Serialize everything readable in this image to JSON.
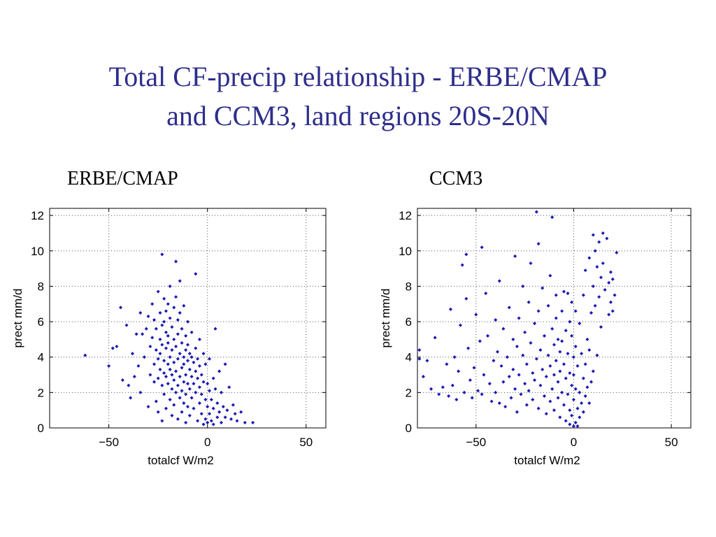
{
  "slide": {
    "title_line1": "Total CF-precip relationship - ERBE/CMAP",
    "title_line2": "and CCM3, land regions 20S-20N"
  },
  "colors": {
    "title": "#2e2e8c",
    "points": "#1a1ab4",
    "grid": "#555555"
  },
  "chart_data": [
    {
      "type": "scatter",
      "title": "ERBE/CMAP",
      "xlabel": "totalcf W/m2",
      "ylabel": "prect mm/d",
      "xlim": [
        -80,
        60
      ],
      "ylim": [
        0,
        12.4
      ],
      "xticks": [
        -50,
        0,
        50
      ],
      "xtick_labels": [
        "−50",
        "0",
        "50"
      ],
      "yticks": [
        0,
        2,
        4,
        6,
        8,
        10,
        12
      ],
      "ytick_labels": [
        "0",
        "2",
        "4",
        "6",
        "8",
        "10",
        "12"
      ],
      "grid": true,
      "legend": "none",
      "points": [
        [
          -62,
          4.1
        ],
        [
          -50,
          3.5
        ],
        [
          -48,
          4.5
        ],
        [
          -46,
          4.6
        ],
        [
          -44,
          6.8
        ],
        [
          -43,
          2.7
        ],
        [
          -41,
          5.8
        ],
        [
          -40,
          2.4
        ],
        [
          -39,
          1.7
        ],
        [
          -38,
          4.2
        ],
        [
          -37,
          2.9
        ],
        [
          -36,
          5.3
        ],
        [
          -35,
          3.5
        ],
        [
          -34,
          6.5
        ],
        [
          -34,
          2.0
        ],
        [
          -33,
          5.3
        ],
        [
          -32,
          4.0
        ],
        [
          -31,
          5.6
        ],
        [
          -30,
          6.3
        ],
        [
          -30,
          1.2
        ],
        [
          -29,
          3.0
        ],
        [
          -29,
          4.6
        ],
        [
          -28,
          7.0
        ],
        [
          -28,
          5.1
        ],
        [
          -27,
          3.6
        ],
        [
          -27,
          2.6
        ],
        [
          -27,
          6.1
        ],
        [
          -26,
          4.4
        ],
        [
          -26,
          5.6
        ],
        [
          -26,
          1.5
        ],
        [
          -25,
          7.7
        ],
        [
          -25,
          3.9
        ],
        [
          -25,
          2.8
        ],
        [
          -25,
          0.9
        ],
        [
          -24,
          6.5
        ],
        [
          -24,
          5.0
        ],
        [
          -24,
          3.3
        ],
        [
          -24,
          4.2
        ],
        [
          -23,
          9.8
        ],
        [
          -23,
          5.8
        ],
        [
          -23,
          4.7
        ],
        [
          -23,
          2.4
        ],
        [
          -23,
          0.4
        ],
        [
          -22,
          7.3
        ],
        [
          -22,
          6.0
        ],
        [
          -22,
          3.8
        ],
        [
          -22,
          3.1
        ],
        [
          -22,
          1.9
        ],
        [
          -21,
          5.4
        ],
        [
          -21,
          4.5
        ],
        [
          -21,
          2.9
        ],
        [
          -21,
          6.6
        ],
        [
          -21,
          1.1
        ],
        [
          -20,
          7.0
        ],
        [
          -20,
          5.2
        ],
        [
          -20,
          3.6
        ],
        [
          -20,
          2.5
        ],
        [
          -20,
          4.8
        ],
        [
          -19,
          8.0
        ],
        [
          -19,
          6.2
        ],
        [
          -19,
          3.3
        ],
        [
          -19,
          4.0
        ],
        [
          -19,
          1.6
        ],
        [
          -18,
          5.7
        ],
        [
          -18,
          4.4
        ],
        [
          -18,
          2.2
        ],
        [
          -18,
          3.0
        ],
        [
          -18,
          0.7
        ],
        [
          -17,
          6.8
        ],
        [
          -17,
          5.0
        ],
        [
          -17,
          3.7
        ],
        [
          -17,
          2.7
        ],
        [
          -17,
          1.3
        ],
        [
          -16,
          9.4
        ],
        [
          -16,
          7.4
        ],
        [
          -16,
          4.6
        ],
        [
          -16,
          3.2
        ],
        [
          -16,
          2.0
        ],
        [
          -15,
          6.1
        ],
        [
          -15,
          5.3
        ],
        [
          -15,
          3.9
        ],
        [
          -15,
          2.4
        ],
        [
          -15,
          0.5
        ],
        [
          -14,
          8.3
        ],
        [
          -14,
          6.5
        ],
        [
          -14,
          4.2
        ],
        [
          -14,
          2.9
        ],
        [
          -14,
          1.7
        ],
        [
          -13,
          5.6
        ],
        [
          -13,
          4.8
        ],
        [
          -13,
          3.4
        ],
        [
          -13,
          2.1
        ],
        [
          -13,
          0.9
        ],
        [
          -12,
          6.9
        ],
        [
          -12,
          4.0
        ],
        [
          -12,
          2.6
        ],
        [
          -12,
          1.4
        ],
        [
          -12,
          3.6
        ],
        [
          -11,
          5.2
        ],
        [
          -11,
          4.4
        ],
        [
          -11,
          3.0
        ],
        [
          -11,
          1.9
        ],
        [
          -11,
          0.3
        ],
        [
          -10,
          6.0
        ],
        [
          -10,
          4.7
        ],
        [
          -10,
          2.5
        ],
        [
          -10,
          3.8
        ],
        [
          -10,
          1.2
        ],
        [
          -9,
          4.2
        ],
        [
          -9,
          3.3
        ],
        [
          -9,
          2.2
        ],
        [
          -9,
          0.7
        ],
        [
          -8,
          5.4
        ],
        [
          -8,
          4.0
        ],
        [
          -8,
          2.9
        ],
        [
          -8,
          1.7
        ],
        [
          -7,
          3.7
        ],
        [
          -7,
          2.5
        ],
        [
          -7,
          1.1
        ],
        [
          -6,
          8.7
        ],
        [
          -6,
          4.5
        ],
        [
          -6,
          3.2
        ],
        [
          -6,
          2.0
        ],
        [
          -5,
          3.9
        ],
        [
          -5,
          2.8
        ],
        [
          -5,
          0.4
        ],
        [
          -4,
          5.0
        ],
        [
          -4,
          3.5
        ],
        [
          -4,
          2.3
        ],
        [
          -4,
          1.4
        ],
        [
          -3,
          3.0
        ],
        [
          -3,
          1.9
        ],
        [
          -3,
          0.8
        ],
        [
          -2,
          4.2
        ],
        [
          -2,
          2.6
        ],
        [
          -2,
          0.2
        ],
        [
          -1,
          3.6
        ],
        [
          -1,
          1.6
        ],
        [
          -1,
          0.5
        ],
        [
          0,
          2.5
        ],
        [
          0,
          1.2
        ],
        [
          0,
          0.3
        ],
        [
          1,
          3.9
        ],
        [
          1,
          2.1
        ],
        [
          1,
          0.8
        ],
        [
          2,
          1.6
        ],
        [
          2,
          0.4
        ],
        [
          3,
          2.8
        ],
        [
          3,
          1.1
        ],
        [
          3,
          0.2
        ],
        [
          4,
          5.6
        ],
        [
          4,
          2.2
        ],
        [
          5,
          1.4
        ],
        [
          5,
          0.6
        ],
        [
          6,
          3.2
        ],
        [
          6,
          0.9
        ],
        [
          7,
          2.0
        ],
        [
          7,
          0.3
        ],
        [
          8,
          1.2
        ],
        [
          9,
          3.6
        ],
        [
          9,
          0.6
        ],
        [
          10,
          1.0
        ],
        [
          11,
          2.3
        ],
        [
          12,
          0.5
        ],
        [
          13,
          1.3
        ],
        [
          14,
          0.8
        ],
        [
          15,
          0.4
        ],
        [
          17,
          0.9
        ],
        [
          19,
          0.3
        ],
        [
          23,
          0.3
        ]
      ]
    },
    {
      "type": "scatter",
      "title": "CCM3",
      "xlabel": "totalcf W/m2",
      "ylabel": "prect mm/d",
      "xlim": [
        -80,
        60
      ],
      "ylim": [
        0,
        12.4
      ],
      "xticks": [
        -50,
        0,
        50
      ],
      "xtick_labels": [
        "−50",
        "0",
        "50"
      ],
      "yticks": [
        0,
        2,
        4,
        6,
        8,
        10,
        12
      ],
      "ytick_labels": [
        "0",
        "2",
        "4",
        "6",
        "8",
        "10",
        "12"
      ],
      "grid": true,
      "legend": "none",
      "points": [
        [
          -79,
          3.9
        ],
        [
          -79,
          4.4
        ],
        [
          -77,
          2.9
        ],
        [
          -75,
          3.8
        ],
        [
          -73,
          2.2
        ],
        [
          -71,
          5.1
        ],
        [
          -69,
          1.9
        ],
        [
          -67,
          2.3
        ],
        [
          -65,
          3.6
        ],
        [
          -64,
          1.8
        ],
        [
          -63,
          6.7
        ],
        [
          -62,
          2.4
        ],
        [
          -61,
          4.0
        ],
        [
          -60,
          1.6
        ],
        [
          -59,
          3.2
        ],
        [
          -58,
          5.8
        ],
        [
          -57,
          9.2
        ],
        [
          -56,
          2.0
        ],
        [
          -55,
          9.8
        ],
        [
          -55,
          7.3
        ],
        [
          -54,
          4.5
        ],
        [
          -53,
          2.7
        ],
        [
          -52,
          1.7
        ],
        [
          -51,
          3.4
        ],
        [
          -50,
          6.4
        ],
        [
          -49,
          2.1
        ],
        [
          -48,
          4.9
        ],
        [
          -47,
          10.2
        ],
        [
          -47,
          1.9
        ],
        [
          -46,
          3.0
        ],
        [
          -45,
          7.6
        ],
        [
          -44,
          5.2
        ],
        [
          -43,
          2.5
        ],
        [
          -42,
          1.5
        ],
        [
          -41,
          3.8
        ],
        [
          -40,
          6.1
        ],
        [
          -40,
          2.0
        ],
        [
          -39,
          4.3
        ],
        [
          -38,
          8.3
        ],
        [
          -38,
          1.4
        ],
        [
          -37,
          3.5
        ],
        [
          -36,
          5.6
        ],
        [
          -36,
          2.6
        ],
        [
          -35,
          1.2
        ],
        [
          -34,
          4.0
        ],
        [
          -33,
          2.9
        ],
        [
          -33,
          6.8
        ],
        [
          -32,
          1.7
        ],
        [
          -31,
          5.0
        ],
        [
          -31,
          3.3
        ],
        [
          -30,
          9.7
        ],
        [
          -30,
          2.2
        ],
        [
          -29,
          4.6
        ],
        [
          -29,
          0.9
        ],
        [
          -28,
          6.2
        ],
        [
          -28,
          3.0
        ],
        [
          -27,
          1.9
        ],
        [
          -26,
          8.0
        ],
        [
          -26,
          4.1
        ],
        [
          -25,
          2.5
        ],
        [
          -25,
          5.4
        ],
        [
          -24,
          1.3
        ],
        [
          -24,
          3.6
        ],
        [
          -23,
          7.1
        ],
        [
          -23,
          2.1
        ],
        [
          -22,
          4.8
        ],
        [
          -22,
          9.3
        ],
        [
          -21,
          3.1
        ],
        [
          -21,
          1.6
        ],
        [
          -20,
          5.9
        ],
        [
          -20,
          2.7
        ],
        [
          -19,
          12.2
        ],
        [
          -19,
          3.9
        ],
        [
          -18,
          1.1
        ],
        [
          -18,
          6.6
        ],
        [
          -18,
          10.4
        ],
        [
          -17,
          2.4
        ],
        [
          -17,
          4.4
        ],
        [
          -16,
          3.3
        ],
        [
          -16,
          7.9
        ],
        [
          -15,
          1.8
        ],
        [
          -15,
          5.2
        ],
        [
          -14,
          2.9
        ],
        [
          -14,
          0.8
        ],
        [
          -13,
          4.1
        ],
        [
          -13,
          6.9
        ],
        [
          -12,
          3.5
        ],
        [
          -12,
          1.5
        ],
        [
          -12,
          8.6
        ],
        [
          -11,
          11.9
        ],
        [
          -11,
          5.6
        ],
        [
          -11,
          2.2
        ],
        [
          -10,
          4.7
        ],
        [
          -10,
          3.0
        ],
        [
          -10,
          1.0
        ],
        [
          -9,
          7.5
        ],
        [
          -9,
          6.2
        ],
        [
          -9,
          3.8
        ],
        [
          -8,
          2.6
        ],
        [
          -8,
          5.0
        ],
        [
          -8,
          1.7
        ],
        [
          -7,
          4.3
        ],
        [
          -7,
          3.2
        ],
        [
          -7,
          0.6
        ],
        [
          -6,
          6.6
        ],
        [
          -6,
          2.0
        ],
        [
          -6,
          4.9
        ],
        [
          -5,
          7.7
        ],
        [
          -5,
          3.6
        ],
        [
          -5,
          1.3
        ],
        [
          -4,
          5.5
        ],
        [
          -4,
          2.8
        ],
        [
          -4,
          0.4
        ],
        [
          -3,
          7.6
        ],
        [
          -3,
          4.2
        ],
        [
          -3,
          1.9
        ],
        [
          -2,
          6.0
        ],
        [
          -2,
          3.1
        ],
        [
          -2,
          1.0
        ],
        [
          -2,
          0.2
        ],
        [
          -1,
          5.2
        ],
        [
          -1,
          2.4
        ],
        [
          -1,
          0.7
        ],
        [
          -1,
          7.1
        ],
        [
          0,
          4.0
        ],
        [
          0,
          1.6
        ],
        [
          0,
          0.1
        ],
        [
          0,
          3.0
        ],
        [
          1,
          6.6
        ],
        [
          1,
          0.3
        ],
        [
          1,
          2.2
        ],
        [
          1,
          4.6
        ],
        [
          2,
          1.1
        ],
        [
          2,
          0.1
        ],
        [
          2,
          3.5
        ],
        [
          3,
          2.0
        ],
        [
          3,
          0.6
        ],
        [
          3,
          5.9
        ],
        [
          4,
          1.4
        ],
        [
          4,
          4.2
        ],
        [
          5,
          7.5
        ],
        [
          5,
          0.9
        ],
        [
          5,
          2.8
        ],
        [
          6,
          8.9
        ],
        [
          6,
          1.8
        ],
        [
          6,
          3.6
        ],
        [
          7,
          5.0
        ],
        [
          7,
          2.3
        ],
        [
          8,
          9.6
        ],
        [
          8,
          4.4
        ],
        [
          8,
          1.4
        ],
        [
          9,
          6.5
        ],
        [
          9,
          2.6
        ],
        [
          10,
          10.9
        ],
        [
          10,
          8.0
        ],
        [
          10,
          3.2
        ],
        [
          11,
          10.0
        ],
        [
          11,
          6.9
        ],
        [
          12,
          9.1
        ],
        [
          12,
          4.1
        ],
        [
          13,
          10.5
        ],
        [
          13,
          7.4
        ],
        [
          14,
          8.5
        ],
        [
          14,
          5.7
        ],
        [
          15,
          11.0
        ],
        [
          15,
          9.3
        ],
        [
          16,
          7.8
        ],
        [
          17,
          10.7
        ],
        [
          18,
          8.2
        ],
        [
          18,
          6.4
        ],
        [
          19,
          8.8
        ],
        [
          19,
          7.1
        ],
        [
          20,
          8.4
        ],
        [
          20,
          6.6
        ],
        [
          21,
          7.5
        ],
        [
          22,
          9.9
        ]
      ]
    }
  ]
}
